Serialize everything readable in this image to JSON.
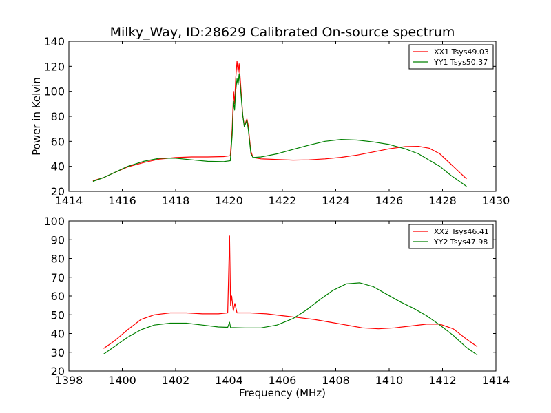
{
  "figure": {
    "title": "Milky_Way, ID:28629 Calibrated On-source spectrum"
  },
  "chart_data": [
    {
      "type": "line",
      "title": "Milky_Way, ID:28629 Calibrated On-source spectrum",
      "xlabel": "",
      "ylabel": "Power in Kelvin",
      "xlim": [
        1414,
        1430
      ],
      "ylim": [
        20,
        140
      ],
      "xticks": [
        1414,
        1416,
        1418,
        1420,
        1422,
        1424,
        1426,
        1428,
        1430
      ],
      "yticks": [
        20,
        40,
        60,
        80,
        100,
        120,
        140
      ],
      "legend_position": "top-right",
      "series": [
        {
          "name": "XX1 Tsys49.03",
          "color": "#ff0000",
          "points": [
            [
              1414.9,
              28.5
            ],
            [
              1415.3,
              31
            ],
            [
              1415.7,
              35
            ],
            [
              1416.2,
              39.5
            ],
            [
              1416.8,
              43
            ],
            [
              1417.4,
              45.8
            ],
            [
              1418,
              47
            ],
            [
              1418.6,
              47.5
            ],
            [
              1419.2,
              47.5
            ],
            [
              1419.8,
              47.8
            ],
            [
              1420.05,
              48.5
            ],
            [
              1420.12,
              70
            ],
            [
              1420.17,
              100
            ],
            [
              1420.21,
              90
            ],
            [
              1420.25,
              110
            ],
            [
              1420.3,
              124
            ],
            [
              1420.34,
              115
            ],
            [
              1420.38,
              122
            ],
            [
              1420.42,
              110
            ],
            [
              1420.47,
              95
            ],
            [
              1420.52,
              80
            ],
            [
              1420.57,
              73
            ],
            [
              1420.62,
              75
            ],
            [
              1420.67,
              78
            ],
            [
              1420.72,
              73
            ],
            [
              1420.77,
              62
            ],
            [
              1420.82,
              52
            ],
            [
              1420.9,
              47
            ],
            [
              1421.2,
              46
            ],
            [
              1421.8,
              45.5
            ],
            [
              1422.4,
              45
            ],
            [
              1423,
              45.2
            ],
            [
              1423.6,
              46
            ],
            [
              1424.2,
              47.2
            ],
            [
              1424.8,
              49
            ],
            [
              1425.4,
              51.5
            ],
            [
              1426,
              54
            ],
            [
              1426.6,
              55.8
            ],
            [
              1427.1,
              56
            ],
            [
              1427.5,
              54.5
            ],
            [
              1427.9,
              50
            ],
            [
              1428.3,
              42
            ],
            [
              1428.7,
              34
            ],
            [
              1428.9,
              30
            ]
          ]
        },
        {
          "name": "YY1 Tsys50.37",
          "color": "#008000",
          "points": [
            [
              1414.9,
              28
            ],
            [
              1415.3,
              31
            ],
            [
              1415.7,
              35
            ],
            [
              1416.2,
              40
            ],
            [
              1416.8,
              44
            ],
            [
              1417.4,
              46.5
            ],
            [
              1418,
              46.5
            ],
            [
              1418.6,
              45.2
            ],
            [
              1419.2,
              44
            ],
            [
              1419.8,
              43.8
            ],
            [
              1420.05,
              44.5
            ],
            [
              1420.12,
              65
            ],
            [
              1420.17,
              92
            ],
            [
              1420.21,
              85
            ],
            [
              1420.25,
              100
            ],
            [
              1420.3,
              110
            ],
            [
              1420.34,
              105
            ],
            [
              1420.38,
              114
            ],
            [
              1420.42,
              105
            ],
            [
              1420.47,
              92
            ],
            [
              1420.52,
              80
            ],
            [
              1420.57,
              72
            ],
            [
              1420.62,
              74
            ],
            [
              1420.67,
              77
            ],
            [
              1420.72,
              70
            ],
            [
              1420.77,
              60
            ],
            [
              1420.82,
              50
            ],
            [
              1420.9,
              47
            ],
            [
              1421.2,
              47.5
            ],
            [
              1421.8,
              50
            ],
            [
              1422.4,
              53.5
            ],
            [
              1423,
              57
            ],
            [
              1423.6,
              60
            ],
            [
              1424.2,
              61.5
            ],
            [
              1424.8,
              61
            ],
            [
              1425.4,
              59.5
            ],
            [
              1426,
              57.5
            ],
            [
              1426.6,
              54
            ],
            [
              1427.1,
              50
            ],
            [
              1427.5,
              45
            ],
            [
              1427.9,
              40
            ],
            [
              1428.3,
              33
            ],
            [
              1428.7,
              27
            ],
            [
              1428.9,
              24
            ]
          ]
        }
      ]
    },
    {
      "type": "line",
      "title": "",
      "xlabel": "Frequency (MHz)",
      "ylabel": "",
      "xlim": [
        1398,
        1414
      ],
      "ylim": [
        20,
        100
      ],
      "xticks": [
        1398,
        1400,
        1402,
        1404,
        1406,
        1408,
        1410,
        1412,
        1414
      ],
      "yticks": [
        20,
        30,
        40,
        50,
        60,
        70,
        80,
        90,
        100
      ],
      "legend_position": "top-right",
      "series": [
        {
          "name": "XX2 Tsys46.41",
          "color": "#ff0000",
          "points": [
            [
              1399.3,
              32
            ],
            [
              1399.7,
              36
            ],
            [
              1400.2,
              42
            ],
            [
              1400.7,
              47.5
            ],
            [
              1401.2,
              50
            ],
            [
              1401.8,
              51
            ],
            [
              1402.4,
              51
            ],
            [
              1403,
              50.5
            ],
            [
              1403.6,
              50.5
            ],
            [
              1403.95,
              51
            ],
            [
              1404.02,
              92
            ],
            [
              1404.06,
              55
            ],
            [
              1404.1,
              60
            ],
            [
              1404.16,
              52
            ],
            [
              1404.22,
              56
            ],
            [
              1404.3,
              51
            ],
            [
              1404.8,
              51
            ],
            [
              1405.4,
              50.5
            ],
            [
              1406,
              49.5
            ],
            [
              1406.6,
              48.5
            ],
            [
              1407.2,
              47.5
            ],
            [
              1407.8,
              46
            ],
            [
              1408.4,
              44.5
            ],
            [
              1409,
              43
            ],
            [
              1409.6,
              42.5
            ],
            [
              1410.2,
              43
            ],
            [
              1410.8,
              44
            ],
            [
              1411.4,
              45
            ],
            [
              1411.9,
              45
            ],
            [
              1412.4,
              42.5
            ],
            [
              1412.9,
              37
            ],
            [
              1413.3,
              33
            ]
          ]
        },
        {
          "name": "YY2 Tsys47.98",
          "color": "#008000",
          "points": [
            [
              1399.3,
              29
            ],
            [
              1399.7,
              33
            ],
            [
              1400.2,
              38
            ],
            [
              1400.7,
              42
            ],
            [
              1401.2,
              44.5
            ],
            [
              1401.8,
              45.5
            ],
            [
              1402.4,
              45.5
            ],
            [
              1403,
              44.5
            ],
            [
              1403.6,
              43.5
            ],
            [
              1403.95,
              43.3
            ],
            [
              1404.02,
              46
            ],
            [
              1404.06,
              43.2
            ],
            [
              1404.6,
              43
            ],
            [
              1405.2,
              43
            ],
            [
              1405.8,
              44.5
            ],
            [
              1406.4,
              48
            ],
            [
              1406.9,
              52.5
            ],
            [
              1407.4,
              58
            ],
            [
              1407.9,
              63
            ],
            [
              1408.4,
              66.5
            ],
            [
              1408.9,
              67
            ],
            [
              1409.4,
              65
            ],
            [
              1409.9,
              61
            ],
            [
              1410.4,
              57
            ],
            [
              1410.9,
              53.5
            ],
            [
              1411.4,
              49.5
            ],
            [
              1411.9,
              44.5
            ],
            [
              1412.4,
              39
            ],
            [
              1412.9,
              32.5
            ],
            [
              1413.3,
              28.5
            ]
          ]
        }
      ]
    }
  ]
}
